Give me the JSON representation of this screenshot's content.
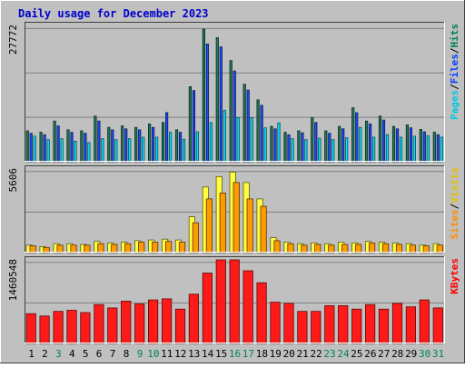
{
  "chart_data": {
    "type": "bar",
    "title": "Daily usage for December 2023",
    "categories": [
      "1",
      "2",
      "3",
      "4",
      "5",
      "6",
      "7",
      "8",
      "9",
      "10",
      "11",
      "12",
      "13",
      "14",
      "15",
      "16",
      "17",
      "18",
      "19",
      "20",
      "21",
      "22",
      "23",
      "24",
      "25",
      "26",
      "27",
      "28",
      "29",
      "30",
      "31"
    ],
    "weekend_days": [
      "3",
      "9",
      "10",
      "16",
      "17",
      "23",
      "24",
      "30",
      "31"
    ],
    "panels": [
      {
        "id": "hits",
        "max_label": "27772",
        "ymax": 27772,
        "legend": [
          {
            "text": "Pages",
            "color": "#00c8e0"
          },
          {
            "text": "/",
            "color": "#000000"
          },
          {
            "text": "Files",
            "color": "#0040ff"
          },
          {
            "text": "/",
            "color": "#000000"
          },
          {
            "text": "Hits",
            "color": "#00805c"
          }
        ],
        "series": [
          {
            "name": "Hits",
            "color": "#1f7a5c",
            "values": [
              6300,
              6000,
              8300,
              6500,
              6300,
              9300,
              7000,
              7300,
              7000,
              7700,
              8000,
              6500,
              15300,
              27000,
              25300,
              20600,
              15800,
              12600,
              7200,
              6000,
              6300,
              9000,
              6300,
              7200,
              11000,
              8300,
              9300,
              7200,
              7500,
              6600,
              6000
            ]
          },
          {
            "name": "Files",
            "color": "#1a4cff",
            "values": [
              5800,
              5500,
              7300,
              6000,
              5800,
              8300,
              6500,
              6700,
              6500,
              7000,
              10000,
              6000,
              14500,
              24000,
              23400,
              18500,
              14600,
              11500,
              6700,
              5500,
              5900,
              8000,
              5800,
              6700,
              10000,
              7700,
              8500,
              6700,
              6900,
              6100,
              5500
            ]
          },
          {
            "name": "Pages",
            "color": "#00e5ff",
            "values": [
              5200,
              4500,
              4700,
              4200,
              3900,
              4700,
              4500,
              4700,
              5000,
              5000,
              6000,
              4600,
              6100,
              8000,
              10500,
              9000,
              9000,
              6900,
              7900,
              4700,
              4500,
              4800,
              4500,
              4900,
              7000,
              5000,
              5500,
              5000,
              5200,
              5300,
              5000
            ]
          }
        ]
      },
      {
        "id": "visits",
        "max_label": "5606",
        "ymax": 5606,
        "legend": [
          {
            "text": "Sites",
            "color": "#ff8c00"
          },
          {
            "text": "/",
            "color": "#000000"
          },
          {
            "text": "Visits",
            "color": "#e0c000"
          }
        ],
        "series": [
          {
            "name": "Visits",
            "color": "#ffff40",
            "values": [
              500,
              400,
              600,
              600,
              550,
              750,
              650,
              700,
              800,
              850,
              900,
              850,
              2400,
              4400,
              5100,
              5400,
              4700,
              3600,
              1000,
              700,
              600,
              650,
              600,
              700,
              650,
              750,
              700,
              650,
              600,
              500,
              600
            ]
          },
          {
            "name": "Sites",
            "color": "#ff9900",
            "values": [
              450,
              350,
              500,
              500,
              500,
              600,
              550,
              600,
              700,
              700,
              750,
              700,
              2000,
              3600,
              4000,
              4700,
              3600,
              3100,
              800,
              600,
              500,
              550,
              500,
              550,
              550,
              650,
              600,
              550,
              500,
              450,
              500
            ]
          }
        ]
      },
      {
        "id": "kbytes",
        "max_label": "1460548",
        "ymax": 1460548,
        "legend": [
          {
            "text": "KBytes",
            "color": "#ff0000"
          }
        ],
        "series": [
          {
            "name": "KBytes",
            "color": "#ff1a1a",
            "values": [
              520000,
              480000,
              560000,
              580000,
              540000,
              680000,
              620000,
              740000,
              690000,
              760000,
              780000,
              600000,
              860000,
              1230000,
              1460548,
              1460548,
              1270000,
              1060000,
              720000,
              700000,
              560000,
              560000,
              660000,
              660000,
              600000,
              680000,
              600000,
              700000,
              640000,
              760000,
              620000
            ]
          }
        ]
      }
    ]
  }
}
